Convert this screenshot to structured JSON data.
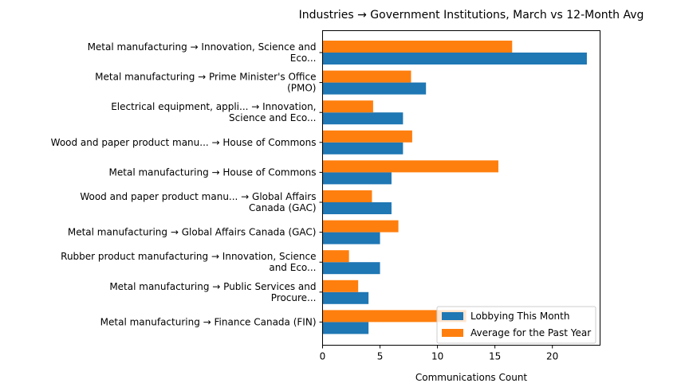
{
  "chart_data": {
    "type": "bar",
    "orientation": "horizontal",
    "title": "Industries → Government Institutions, March vs 12-Month Avg",
    "xlabel": "Communications Count",
    "ylabel": "",
    "xlim": [
      0,
      24.15
    ],
    "xticks": [
      0,
      5,
      10,
      15,
      20
    ],
    "categories": [
      [
        "Metal manufacturing → Innovation, Science and",
        "Eco..."
      ],
      [
        "Metal manufacturing → Prime Minister's Office",
        "(PMO)"
      ],
      [
        "Electrical equipment, appli... → Innovation,",
        "Science and Eco..."
      ],
      [
        "Wood and paper product manu... → House of Commons"
      ],
      [
        "Metal manufacturing → House of Commons"
      ],
      [
        "Wood and paper product manu... → Global Affairs",
        "Canada (GAC)"
      ],
      [
        "Metal manufacturing → Global Affairs Canada (GAC)"
      ],
      [
        "Rubber product manufacturing → Innovation, Science",
        "and Eco..."
      ],
      [
        "Metal manufacturing → Public Services and",
        "Procure..."
      ],
      [
        "Metal manufacturing → Finance Canada (FIN)"
      ]
    ],
    "series": [
      {
        "name": "Lobbying This Month",
        "color": "#1f77b4",
        "values": [
          23,
          9,
          7,
          7,
          6,
          6,
          5,
          5,
          4,
          4
        ]
      },
      {
        "name": "Average for the Past Year",
        "color": "#ff7f0e",
        "values": [
          16.5,
          7.7,
          4.4,
          7.8,
          15.3,
          4.3,
          6.6,
          2.3,
          3.1,
          12.5
        ]
      }
    ],
    "legend_position": "lower-right",
    "grid": false
  }
}
